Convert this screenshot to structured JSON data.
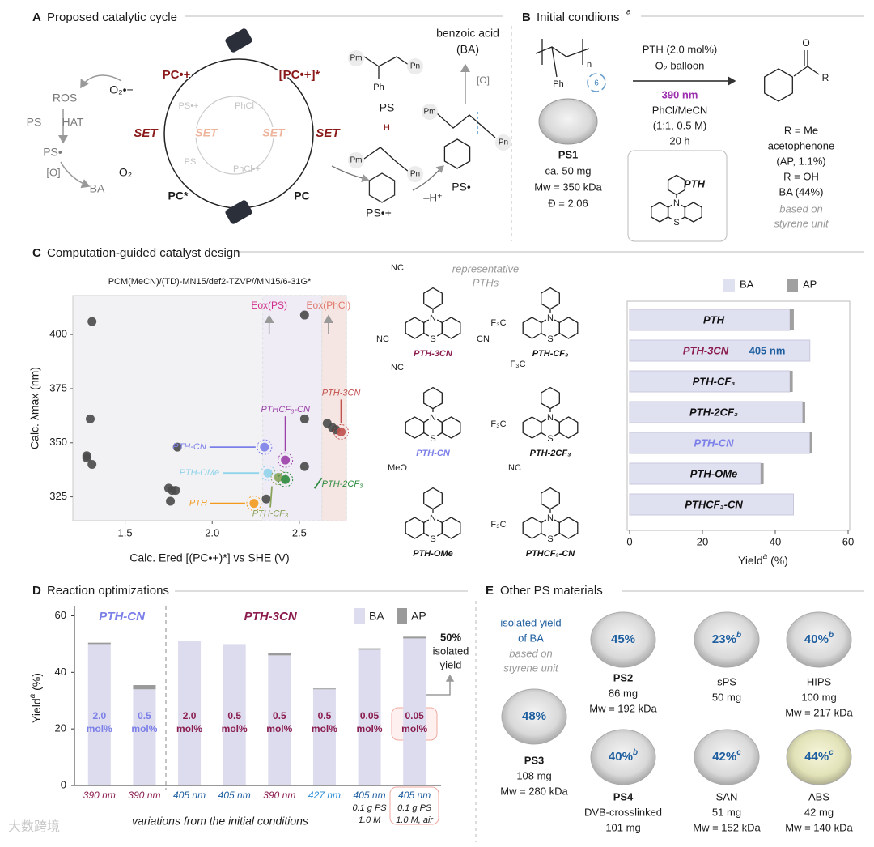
{
  "atoms": {
    "n": "N",
    "s": "S"
  },
  "panel_a": {
    "labels": [
      "A",
      "Proposed catalytic cycle",
      "PC•+",
      "[PC•+]*",
      "SET",
      "SET",
      "PC*",
      "PC",
      "PS•+",
      "PhCl",
      "SET",
      "SET",
      "PS",
      "PhCl•+",
      "O₂•−",
      "O₂",
      "ROS",
      "PS",
      "HAT",
      "PS•",
      "[O]",
      "BA",
      "PS",
      "benzoic acid",
      "(BA)",
      "[O]",
      "PS•",
      "PS•+",
      "–H⁺",
      "Ph",
      "H",
      "Pm",
      "Pn",
      "Pm",
      "Pn",
      "Pm",
      "Pn"
    ]
  },
  "panel_b": {
    "labels": [
      "B",
      "Initial condiions",
      "a",
      "PTH (2.0 mol%)",
      "O₂ balloon",
      "390 nm",
      "PhCl/MeCN",
      "(1:1, 0.5 M)",
      "20 h",
      "PS1",
      "ca. 50 mg",
      "Mw = 350 kDa",
      "Đ = 2.06",
      "PTH",
      "R = Me",
      "acetophenone",
      "(AP, 1.1%)",
      "R = OH",
      "BA (44%)",
      "based on",
      "styrene unit",
      "O",
      "R",
      "n",
      "Ph",
      "6"
    ]
  },
  "panel_c": {
    "letter": "C",
    "title": "Computation-guided catalyst design",
    "scatter": {
      "type": "scatter",
      "subtitle": "PCM(MeCN)/(TD)-MN15/def2-TZVP//MN15/6-31G*",
      "x_label": "Calc. Ered [(PC•+)*] vs SHE (V)",
      "y_label": "Calc. λmax (nm)",
      "xlim": [
        1.2,
        2.77
      ],
      "ylim": [
        314,
        418
      ],
      "xticks": [
        {
          "value": 1.5,
          "label": "1.5"
        },
        {
          "value": 2,
          "label": "2.0"
        },
        {
          "value": 2.5,
          "label": "2.5"
        }
      ],
      "yticks": [
        325,
        350,
        375,
        400
      ],
      "x": [
        1.31,
        1.3,
        1.28,
        1.28,
        1.31,
        1.8,
        1.75,
        1.77,
        1.79,
        1.76,
        2.31,
        2.53,
        2.53,
        2.53,
        2.66,
        2.69,
        2.71,
        2.3,
        2.24,
        2.32,
        2.42,
        2.38,
        2.42,
        2.74
      ],
      "y": [
        406,
        361,
        344,
        343,
        340,
        348,
        329,
        328,
        328,
        323,
        324,
        409,
        361,
        339,
        359,
        357,
        356,
        348,
        322,
        336,
        342,
        334,
        333,
        355
      ],
      "point_labels": [
        null,
        null,
        null,
        null,
        null,
        null,
        null,
        null,
        null,
        null,
        null,
        null,
        null,
        null,
        null,
        null,
        null,
        "PTH-CN",
        "PTH",
        "PTH-OMe",
        "PTHCF₃-CN",
        "PTH-CF₃",
        "PTH-2CF₃",
        "PTH-3CN"
      ],
      "point_colors": [
        "#4a4a4a",
        "#4a4a4a",
        "#4a4a4a",
        "#4a4a4a",
        "#4a4a4a",
        "#4a4a4a",
        "#4a4a4a",
        "#4a4a4a",
        "#4a4a4a",
        "#4a4a4a",
        "#4a4a4a",
        "#4a4a4a",
        "#4a4a4a",
        "#4a4a4a",
        "#4a4a4a",
        "#4a4a4a",
        "#4a4a4a",
        "#7b7fe8",
        "#f39a1e",
        "#8fd3ea",
        "#9b3fa8",
        "#8aa35a",
        "#2e8b3e",
        "#c0504d"
      ],
      "regions": [
        {
          "label": "Eox(PS)",
          "start": 2.29,
          "end": 2.63,
          "color": "#efecf6",
          "label_color": "#d0308a"
        },
        {
          "label": "Eox(PhCl)",
          "start": 2.63,
          "end": 2.77,
          "color": "#f6e6e3",
          "label_color": "#e0786a"
        }
      ]
    },
    "structures": {
      "caption": [
        "representative",
        "PTHs"
      ],
      "items": [
        {
          "name": "PTH-3CN",
          "color": "#8b1d4f",
          "subs": [
            "NC",
            "NC",
            "CN"
          ]
        },
        {
          "name": "PTH-CF₃",
          "color": "#111111",
          "subs": [
            "F₃C"
          ]
        },
        {
          "name": "PTH-CN",
          "color": "#7b7fe8",
          "subs": [
            "NC"
          ]
        },
        {
          "name": "PTH-2CF₃",
          "color": "#111111",
          "subs": [
            "F₃C",
            "F₃C"
          ]
        },
        {
          "name": "PTH-OMe",
          "color": "#111111",
          "subs": [
            "MeO"
          ]
        },
        {
          "name": "PTHCF₃-CN",
          "color": "#111111",
          "subs": [
            "NC",
            "F₃C"
          ]
        }
      ]
    },
    "bars": {
      "type": "bar",
      "orientation": "horizontal",
      "stacked": true,
      "categories": [
        "PTH",
        "PTH-3CN",
        "PTH-CF₃",
        "PTH-2CF₃",
        "PTH-CN",
        "PTH-OMe",
        "PTHCF₃-CN"
      ],
      "category_colors": [
        "#111111",
        "#8b1d4f",
        "#111111",
        "#111111",
        "#7b7fe8",
        "#111111",
        "#111111"
      ],
      "series": [
        {
          "name": "BA",
          "color": "#dfe0f0",
          "values": [
            44,
            49.5,
            44,
            47.5,
            49.5,
            36,
            45
          ]
        },
        {
          "name": "AP",
          "color": "#a0a0a0",
          "values": [
            1.1,
            0,
            0.8,
            0.7,
            0.6,
            0.8,
            0
          ]
        }
      ],
      "annotation": {
        "text": "405 nm",
        "color": "#1f5fa0"
      },
      "xlim": [
        0,
        60
      ],
      "xticks": [
        0,
        20,
        40,
        60
      ],
      "x_label": [
        "Yield",
        "a",
        " (%)"
      ]
    }
  },
  "panel_d": {
    "letter": "D",
    "title": "Reaction optimizations",
    "chart": {
      "type": "bar",
      "stacked": true,
      "y_label": [
        "Yield",
        "a",
        " (%)"
      ],
      "ylim": [
        0,
        63
      ],
      "yticks": [
        0,
        20,
        40,
        60
      ],
      "categories": [
        "390 nm",
        "390 nm",
        "405 nm",
        "405 nm",
        "390 nm",
        "427 nm",
        "405 nm",
        "405 nm"
      ],
      "category_colors": [
        "#8b1d4f",
        "#8b1d4f",
        "#1f5fa0",
        "#1f5fa0",
        "#8b1d4f",
        "#2f8fd6",
        "#1f5fa0",
        "#1f5fa0"
      ],
      "extra_lines": [
        null,
        null,
        null,
        null,
        null,
        null,
        [
          "0.1 g PS",
          "1.0 M"
        ],
        [
          "0.1 g PS",
          "1.0 M, air"
        ]
      ],
      "loadings": [
        [
          "2.0",
          "mol%"
        ],
        [
          "0.5",
          "mol%"
        ],
        [
          "2.0",
          "mol%"
        ],
        [
          "0.5",
          "mol%"
        ],
        [
          "0.5",
          "mol%"
        ],
        [
          "0.5",
          "mol%"
        ],
        [
          "0.05",
          "mol%"
        ],
        [
          "0.05",
          "mol%"
        ]
      ],
      "loading_colors": [
        "#7b7fe8",
        "#7b7fe8",
        "#8b1d4f",
        "#8b1d4f",
        "#8b1d4f",
        "#8b1d4f",
        "#8b1d4f",
        "#8b1d4f"
      ],
      "series": [
        {
          "name": "BA",
          "color": "#dcdcee",
          "values": [
            50,
            34,
            51,
            50,
            46,
            34,
            48,
            52
          ]
        },
        {
          "name": "AP",
          "color": "#9a9a9a",
          "values": [
            0.5,
            1.5,
            0,
            0,
            0.7,
            0.3,
            0.5,
            0.6
          ]
        }
      ],
      "groups": [
        {
          "name": "PTH-CN",
          "color": "#7b7fe8"
        },
        {
          "name": "PTH-3CN",
          "color": "#8b1d4f"
        }
      ],
      "x_label": "variations from the initial conditions",
      "annotation": [
        "50%",
        "isolated",
        "yield"
      ]
    }
  },
  "panel_e": {
    "letter": "E",
    "title": "Other PS materials",
    "note": [
      "isolated yield",
      "of BA"
    ],
    "note2": [
      "based on",
      "styrene unit"
    ],
    "items": [
      {
        "name": "PS2",
        "yield": "45%",
        "lines": [
          "86 mg",
          "Mw = 192 kDa"
        ]
      },
      {
        "name": "sPS",
        "yield": "23%",
        "sup": "b",
        "lines": [
          "50 mg"
        ]
      },
      {
        "name": "HIPS",
        "yield": "40%",
        "sup": "b",
        "lines": [
          "100 mg",
          "Mw = 217 kDa"
        ]
      },
      {
        "name": "PS3",
        "yield": "48%",
        "lines": [
          "108 mg",
          "Mw = 280 kDa"
        ]
      },
      {
        "name": "PS4",
        "yield": "40%",
        "sup": "b",
        "lines": [
          "DVB-crosslinked",
          "101 mg"
        ]
      },
      {
        "name": "SAN",
        "yield": "42%",
        "sup": "c",
        "lines": [
          "51 mg",
          "Mw = 152 kDa"
        ]
      },
      {
        "name": "ABS",
        "yield": "44%",
        "sup": "c",
        "lines": [
          "42 mg",
          "Mw = 140 kDa"
        ]
      }
    ]
  },
  "watermark": "大数跨境"
}
